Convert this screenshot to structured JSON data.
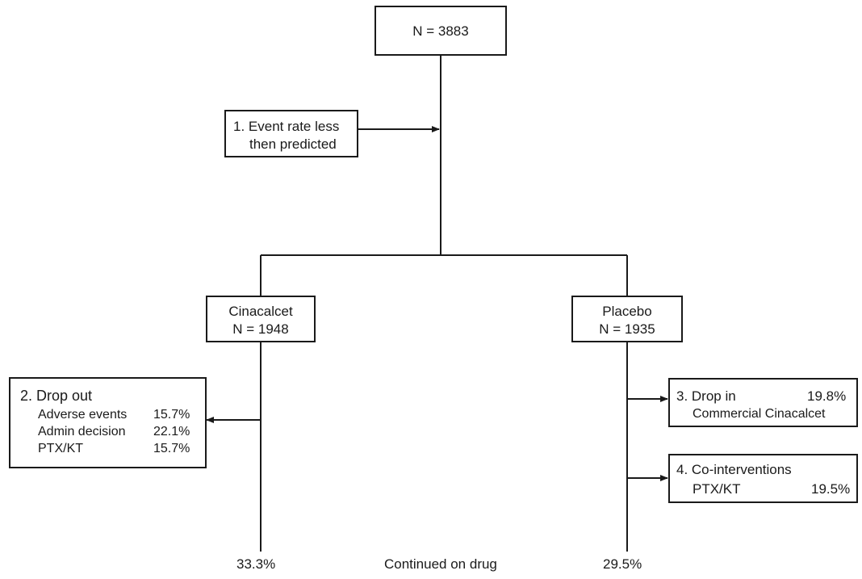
{
  "root": {
    "label": "N = 3883"
  },
  "event_note": {
    "line1": "1. Event rate less",
    "line2": "then predicted"
  },
  "arms": {
    "cinacalcet": {
      "name": "Cinacalcet",
      "n": "N = 1948",
      "continued": "33.3%"
    },
    "placebo": {
      "name": "Placebo",
      "n": "N = 1935",
      "continued": "29.5%"
    }
  },
  "dropout": {
    "title": "2. Drop out",
    "rows": [
      {
        "label": "Adverse events",
        "value": "15.7%"
      },
      {
        "label": "Admin decision",
        "value": "22.1%"
      },
      {
        "label": "PTX/KT",
        "value": "15.7%"
      }
    ]
  },
  "dropin": {
    "title": "3. Drop in",
    "value": "19.8%",
    "detail": "Commercial Cinacalcet"
  },
  "cointerventions": {
    "title": "4. Co-interventions",
    "label": "PTX/KT",
    "value": "19.5%"
  },
  "footer": {
    "continued_label": "Continued on drug"
  }
}
